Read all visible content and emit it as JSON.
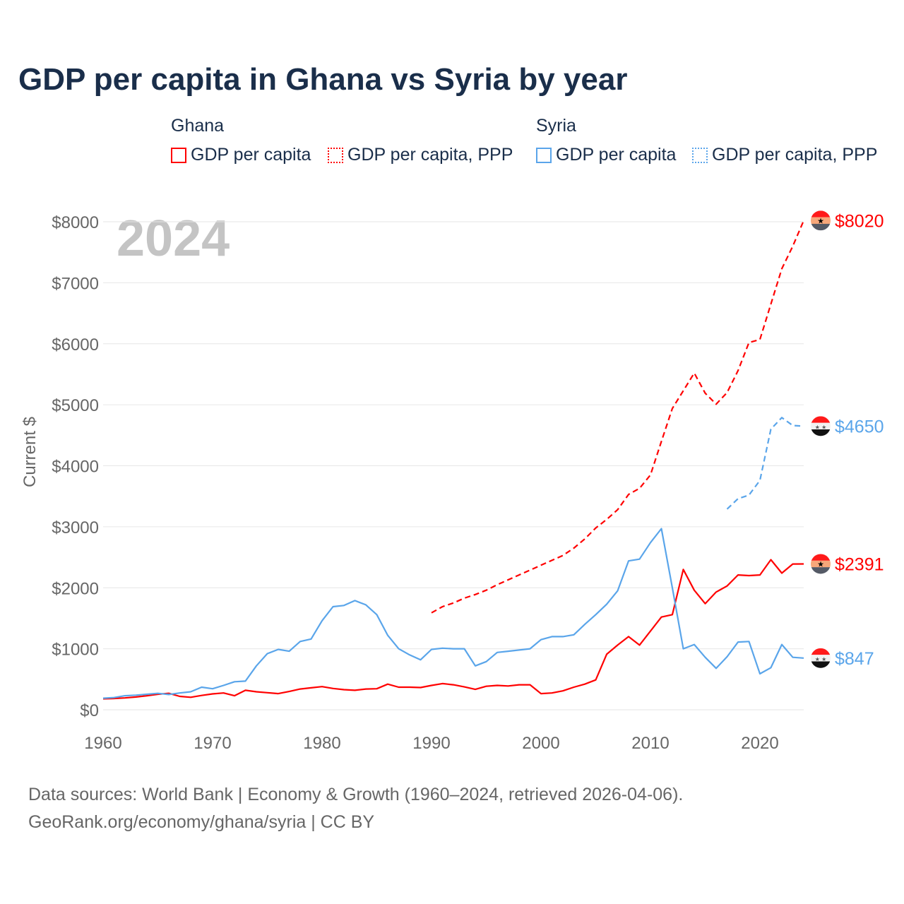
{
  "title": "GDP per capita in Ghana vs Syria by year",
  "legend": {
    "groups": [
      {
        "name": "Ghana",
        "items": [
          "GDP per capita",
          "GDP per capita, PPP"
        ]
      },
      {
        "name": "Syria",
        "items": [
          "GDP per capita",
          "GDP per capita, PPP"
        ]
      }
    ]
  },
  "colors": {
    "ghana": "#ff0000",
    "syria": "#5aa5ea"
  },
  "year_overlay": "2024",
  "footer": {
    "line1": "Data sources: World Bank | Economy & Growth (1960–2024, retrieved 2026-04-06).",
    "line2": "GeoRank.org/economy/ghana/syria | CC BY"
  },
  "chart_data": {
    "type": "line",
    "title": "GDP per capita in Ghana vs Syria by year",
    "xlabel": "",
    "ylabel": "Current $",
    "xlim": [
      1960,
      2024
    ],
    "ylim": [
      0,
      8000
    ],
    "xticks": [
      "1960",
      "1970",
      "1980",
      "1990",
      "2000",
      "2010",
      "2020"
    ],
    "yticks": [
      "$0",
      "$1000",
      "$2000",
      "$3000",
      "$4000",
      "$5000",
      "$6000",
      "$7000",
      "$8000"
    ],
    "grid": true,
    "series": [
      {
        "name": "Ghana GDP per capita",
        "color": "#ff0000",
        "dash": false,
        "start": 1960,
        "end_label": "$2391",
        "values": [
          180,
          185,
          195,
          210,
          230,
          255,
          270,
          220,
          205,
          235,
          260,
          275,
          230,
          320,
          295,
          280,
          265,
          300,
          340,
          360,
          380,
          350,
          330,
          320,
          340,
          345,
          420,
          370,
          370,
          365,
          400,
          430,
          410,
          375,
          335,
          385,
          400,
          390,
          410,
          410,
          265,
          275,
          310,
          370,
          420,
          490,
          910,
          1060,
          1200,
          1060,
          1290,
          1520,
          1560,
          2300,
          1960,
          1740,
          1930,
          2030,
          2210,
          2200,
          2210,
          2460,
          2240,
          2390,
          2391
        ]
      },
      {
        "name": "Ghana GDP per capita, PPP",
        "color": "#ff0000",
        "dash": true,
        "start": 1990,
        "end_label": "$8020",
        "values": [
          1590,
          1690,
          1750,
          1830,
          1890,
          1960,
          2050,
          2130,
          2210,
          2290,
          2370,
          2450,
          2530,
          2650,
          2800,
          2980,
          3120,
          3280,
          3530,
          3630,
          3850,
          4400,
          4940,
          5230,
          5520,
          5190,
          5010,
          5200,
          5560,
          6020,
          6070,
          6650,
          7230,
          7600,
          8020
        ]
      },
      {
        "name": "Syria GDP per capita",
        "color": "#5aa5ea",
        "dash": false,
        "start": 1960,
        "end_label": "$847",
        "values": [
          190,
          200,
          230,
          240,
          255,
          270,
          250,
          275,
          295,
          370,
          345,
          400,
          460,
          470,
          720,
          920,
          990,
          960,
          1120,
          1160,
          1460,
          1690,
          1710,
          1790,
          1720,
          1560,
          1220,
          1000,
          900,
          820,
          990,
          1010,
          1000,
          1000,
          720,
          790,
          940,
          960,
          980,
          1000,
          1150,
          1200,
          1200,
          1230,
          1400,
          1560,
          1730,
          1950,
          2440,
          2470,
          2740,
          2970,
          2000,
          1000,
          1070,
          860,
          680,
          870,
          1110,
          1120,
          590,
          690,
          1070,
          860,
          847
        ]
      },
      {
        "name": "Syria GDP per capita, PPP",
        "color": "#5aa5ea",
        "dash": true,
        "start": 2017,
        "end_label": "$4650",
        "values": [
          3290,
          3460,
          3520,
          3760,
          4600,
          4790,
          4660,
          4650
        ]
      }
    ]
  }
}
